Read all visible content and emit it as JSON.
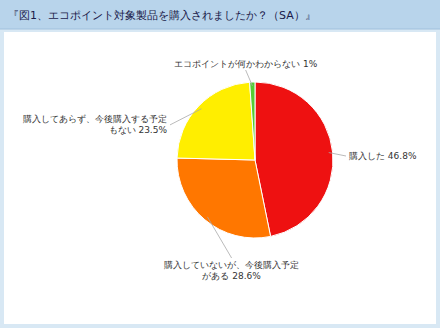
{
  "chart_data": {
    "type": "pie",
    "title": "『図1、エコポイント対象製品を購入されましたか？（SA）』",
    "categories": [
      "購入した 46.8%",
      "購入していないが、今後購入予定\nがある 28.6%",
      "購入してあらず、今後購入する予定\nもない 23.5%",
      "エコポイントが何かわからない 1%"
    ],
    "values": [
      46.8,
      28.6,
      23.5,
      1.1
    ],
    "colors": [
      "#EE1111",
      "#FF7700",
      "#FFEE00",
      "#55CC33"
    ]
  }
}
